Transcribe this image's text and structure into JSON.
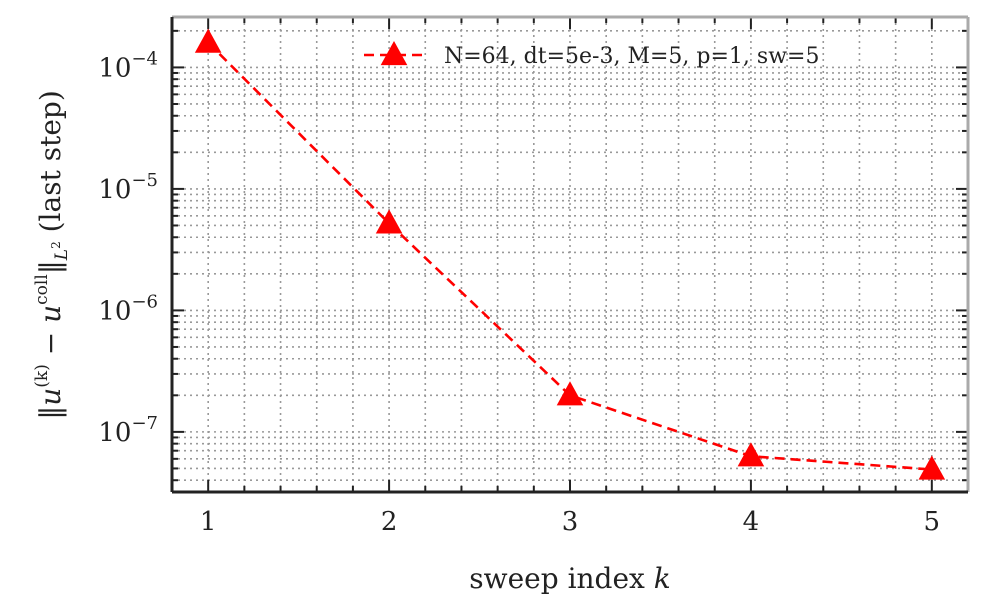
{
  "chart_data": {
    "type": "line",
    "title": "",
    "xlabel": "sweep index k",
    "ylabel": "‖u^(k) − u^coll‖_L² (last step)",
    "x_scale": "linear",
    "y_scale": "log",
    "xlim": [
      0.8,
      5.2
    ],
    "ylim": [
      3.2e-08,
      0.00026
    ],
    "x_ticks": [
      1,
      2,
      3,
      4,
      5
    ],
    "y_ticks": [
      1e-07,
      1e-06,
      1e-05,
      0.0001
    ],
    "y_tick_labels": [
      {
        "base": "10",
        "exp": "−7"
      },
      {
        "base": "10",
        "exp": "−6"
      },
      {
        "base": "10",
        "exp": "−5"
      },
      {
        "base": "10",
        "exp": "−4"
      }
    ],
    "grid": true,
    "legend_position": "top-right",
    "series": [
      {
        "name": "N=64, dt=5e-3, M=5, p=1, sw=5",
        "color": "#ff0000",
        "line_style": "dashed",
        "marker": "triangle-up",
        "x": [
          1,
          2,
          3,
          4,
          5
        ],
        "y": [
          0.00016,
          5.2e-06,
          2e-07,
          6.3e-08,
          4.9e-08
        ]
      }
    ]
  }
}
